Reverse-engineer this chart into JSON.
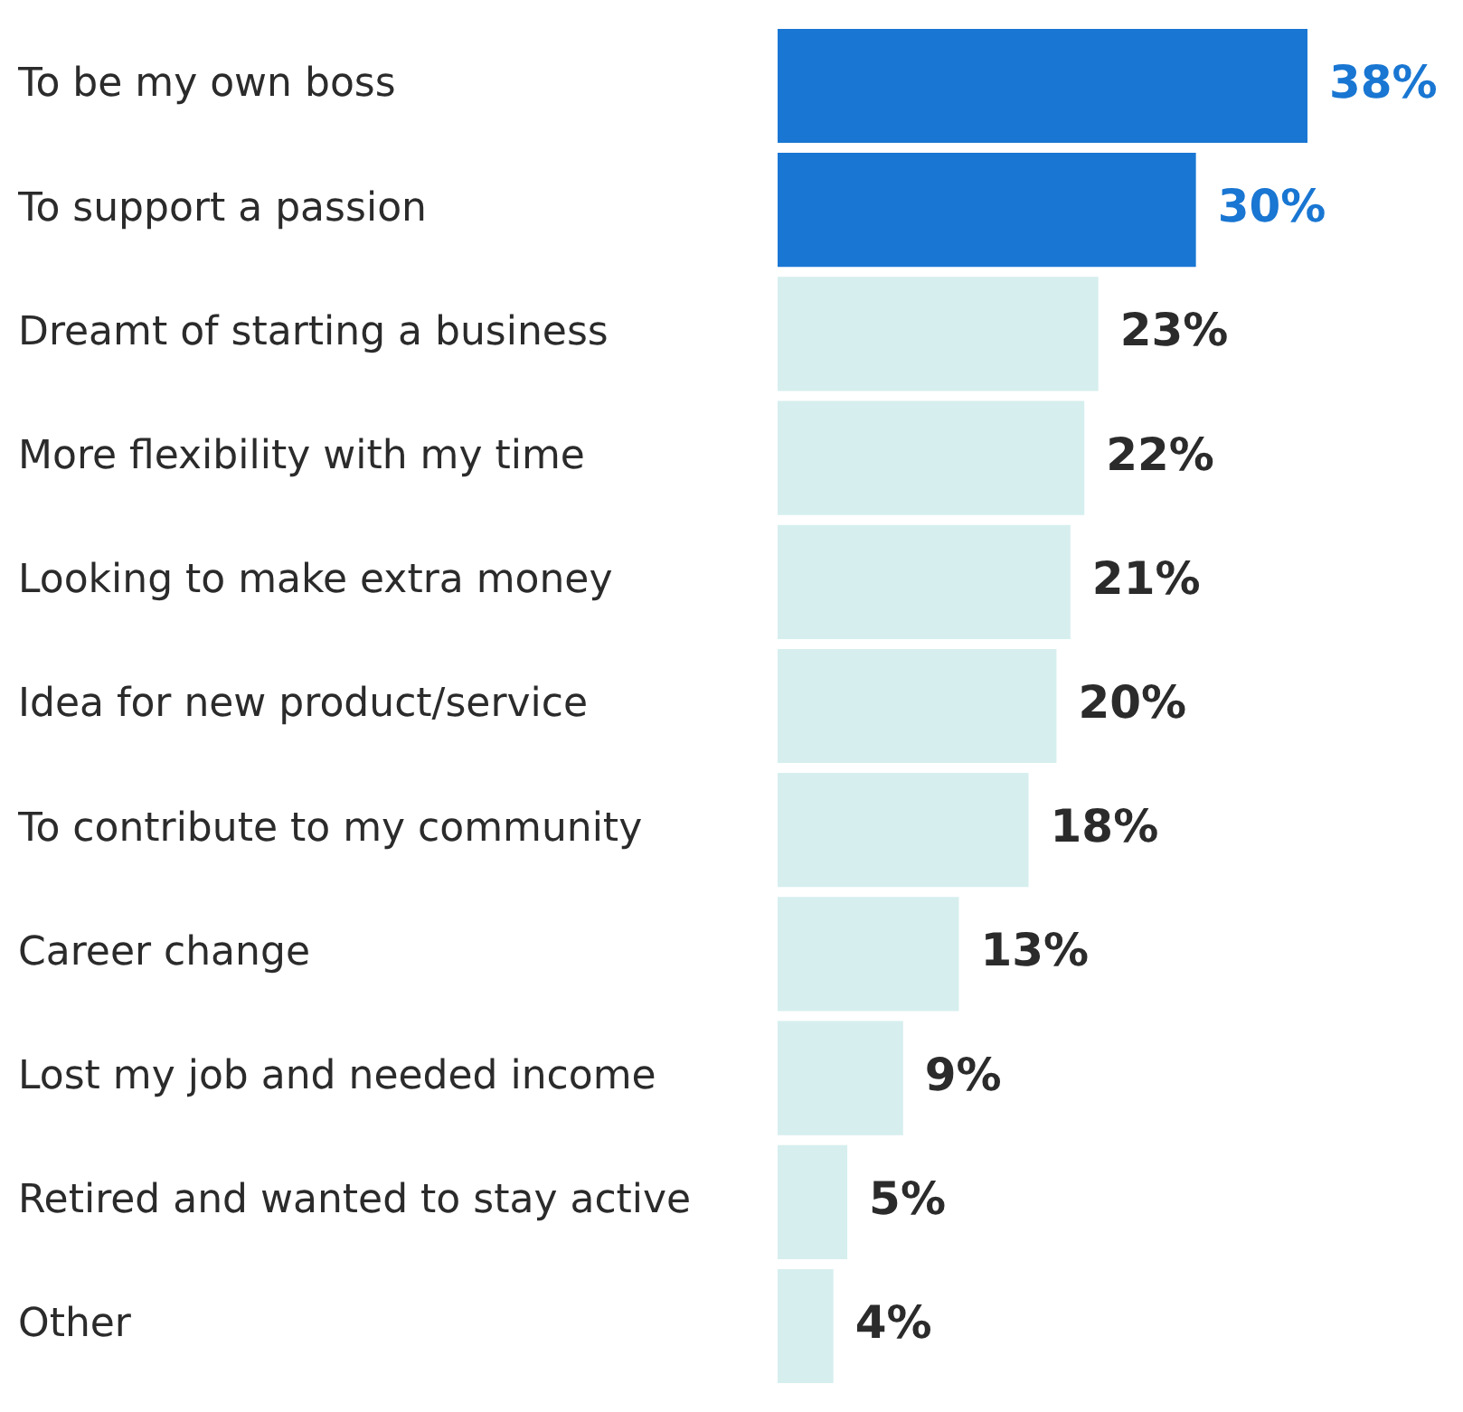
{
  "chart_data": {
    "type": "bar",
    "orientation": "horizontal",
    "categories": [
      "To be my own boss",
      "To support a passion",
      "Dreamt of starting a business",
      "More flexibility with my time",
      "Looking to make extra money",
      "Idea for new product/service",
      "To contribute to my community",
      "Career change",
      "Lost my job and needed income",
      "Retired and wanted to stay active",
      "Other"
    ],
    "values": [
      38,
      30,
      23,
      22,
      21,
      20,
      18,
      13,
      9,
      5,
      4
    ],
    "colors": [
      "#1976d2",
      "#1976d2",
      "#d6eeee",
      "#d6eeee",
      "#d6eeee",
      "#d6eeee",
      "#d6eeee",
      "#d6eeee",
      "#d6eeee",
      "#d6eeee",
      "#d6eeee"
    ],
    "value_labels": [
      "38%",
      "30%",
      "23%",
      "22%",
      "21%",
      "20%",
      "18%",
      "13%",
      "9%",
      "5%",
      "4%"
    ],
    "tick_labels": "y",
    "grid": false,
    "legend": false
  }
}
